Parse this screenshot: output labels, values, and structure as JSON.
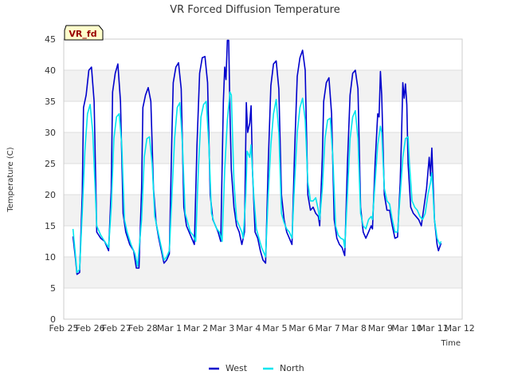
{
  "chart_data": {
    "type": "line",
    "title": "VR Forced Diffusion Temperature",
    "xlabel": "Time",
    "ylabel": "Temperature (C)",
    "badge": "VR_fd",
    "xlim": [
      0,
      16
    ],
    "ylim": [
      0,
      45
    ],
    "grid": true,
    "legend_position": "bottom-center",
    "x_ticks": [
      {
        "value": 0,
        "label": "Feb 25"
      },
      {
        "value": 1,
        "label": "Feb 26"
      },
      {
        "value": 2,
        "label": "Feb 27"
      },
      {
        "value": 3,
        "label": "Feb 28"
      },
      {
        "value": 4,
        "label": "Mar 1"
      },
      {
        "value": 5,
        "label": "Mar 2"
      },
      {
        "value": 6,
        "label": "Mar 3"
      },
      {
        "value": 7,
        "label": "Mar 4"
      },
      {
        "value": 8,
        "label": "Mar 5"
      },
      {
        "value": 9,
        "label": "Mar 6"
      },
      {
        "value": 10,
        "label": "Mar 7"
      },
      {
        "value": 11,
        "label": "Mar 8"
      },
      {
        "value": 12,
        "label": "Mar 9"
      },
      {
        "value": 13,
        "label": "Mar 10"
      },
      {
        "value": 14,
        "label": "Mar 11"
      },
      {
        "value": 15,
        "label": "Mar 12"
      }
    ],
    "y_ticks": [
      0,
      5,
      10,
      15,
      20,
      25,
      30,
      35,
      40,
      45
    ],
    "series": [
      {
        "name": "West",
        "color": "#0000cc",
        "points": [
          [
            0.35,
            13.3
          ],
          [
            0.45,
            9.5
          ],
          [
            0.5,
            7.2
          ],
          [
            0.6,
            7.5
          ],
          [
            0.7,
            20
          ],
          [
            0.75,
            34
          ],
          [
            0.85,
            36
          ],
          [
            0.95,
            40
          ],
          [
            1.05,
            40.5
          ],
          [
            1.15,
            35
          ],
          [
            1.25,
            14
          ],
          [
            1.4,
            13
          ],
          [
            1.55,
            12.5
          ],
          [
            1.7,
            11
          ],
          [
            1.8,
            21
          ],
          [
            1.85,
            36.5
          ],
          [
            1.95,
            39.5
          ],
          [
            2.05,
            41
          ],
          [
            2.15,
            35
          ],
          [
            2.25,
            17
          ],
          [
            2.35,
            14
          ],
          [
            2.5,
            12
          ],
          [
            2.65,
            11
          ],
          [
            2.75,
            8.2
          ],
          [
            2.85,
            8.2
          ],
          [
            2.95,
            21
          ],
          [
            3.0,
            34
          ],
          [
            3.1,
            36
          ],
          [
            3.2,
            37.2
          ],
          [
            3.3,
            35
          ],
          [
            3.4,
            21
          ],
          [
            3.5,
            15.5
          ],
          [
            3.6,
            13
          ],
          [
            3.7,
            11
          ],
          [
            3.8,
            9
          ],
          [
            3.9,
            9.5
          ],
          [
            4.0,
            10.5
          ],
          [
            4.1,
            30
          ],
          [
            4.15,
            38
          ],
          [
            4.25,
            40.5
          ],
          [
            4.35,
            41.2
          ],
          [
            4.45,
            37
          ],
          [
            4.55,
            18
          ],
          [
            4.65,
            15
          ],
          [
            4.75,
            14
          ],
          [
            4.85,
            13
          ],
          [
            4.95,
            12
          ],
          [
            5.05,
            28
          ],
          [
            5.15,
            39.5
          ],
          [
            5.25,
            42
          ],
          [
            5.35,
            42.2
          ],
          [
            5.45,
            38
          ],
          [
            5.55,
            20
          ],
          [
            5.65,
            16
          ],
          [
            5.75,
            15
          ],
          [
            5.85,
            14
          ],
          [
            5.95,
            12.5
          ],
          [
            6.05,
            35
          ],
          [
            6.1,
            40.5
          ],
          [
            6.15,
            38.5
          ],
          [
            6.2,
            44.8
          ],
          [
            6.25,
            44.8
          ],
          [
            6.3,
            33
          ],
          [
            6.35,
            24
          ],
          [
            6.45,
            18
          ],
          [
            6.55,
            15
          ],
          [
            6.65,
            14
          ],
          [
            6.75,
            12
          ],
          [
            6.85,
            14
          ],
          [
            6.92,
            34.8
          ],
          [
            6.97,
            30
          ],
          [
            7.05,
            31.5
          ],
          [
            7.1,
            34.3
          ],
          [
            7.15,
            24
          ],
          [
            7.25,
            14
          ],
          [
            7.35,
            13
          ],
          [
            7.45,
            11
          ],
          [
            7.55,
            9.5
          ],
          [
            7.65,
            9
          ],
          [
            7.75,
            25
          ],
          [
            7.85,
            37.5
          ],
          [
            7.95,
            41
          ],
          [
            8.05,
            41.5
          ],
          [
            8.15,
            37
          ],
          [
            8.25,
            20
          ],
          [
            8.35,
            16
          ],
          [
            8.45,
            14
          ],
          [
            8.55,
            13
          ],
          [
            8.65,
            12
          ],
          [
            8.75,
            27
          ],
          [
            8.85,
            39
          ],
          [
            8.95,
            42
          ],
          [
            9.05,
            43.2
          ],
          [
            9.15,
            40
          ],
          [
            9.25,
            20
          ],
          [
            9.35,
            17.5
          ],
          [
            9.45,
            18
          ],
          [
            9.55,
            17
          ],
          [
            9.65,
            16.5
          ],
          [
            9.7,
            15
          ],
          [
            9.8,
            26
          ],
          [
            9.85,
            35
          ],
          [
            9.95,
            38
          ],
          [
            10.05,
            38.8
          ],
          [
            10.15,
            33
          ],
          [
            10.25,
            16
          ],
          [
            10.35,
            13
          ],
          [
            10.45,
            12
          ],
          [
            10.55,
            11.5
          ],
          [
            10.65,
            10.2
          ],
          [
            10.75,
            25
          ],
          [
            10.85,
            36
          ],
          [
            10.95,
            39.5
          ],
          [
            11.05,
            40
          ],
          [
            11.15,
            37
          ],
          [
            11.25,
            18
          ],
          [
            11.35,
            14
          ],
          [
            11.45,
            13
          ],
          [
            11.55,
            14
          ],
          [
            11.65,
            15
          ],
          [
            11.7,
            14.5
          ],
          [
            11.8,
            25
          ],
          [
            11.9,
            33
          ],
          [
            11.95,
            32.5
          ],
          [
            12.0,
            39.8
          ],
          [
            12.05,
            36
          ],
          [
            12.15,
            20
          ],
          [
            12.25,
            17.5
          ],
          [
            12.35,
            17.5
          ],
          [
            12.45,
            15
          ],
          [
            12.55,
            13
          ],
          [
            12.65,
            13.2
          ],
          [
            12.75,
            22
          ],
          [
            12.8,
            29
          ],
          [
            12.85,
            38
          ],
          [
            12.9,
            35.5
          ],
          [
            12.95,
            37.8
          ],
          [
            13.0,
            34.5
          ],
          [
            13.05,
            25
          ],
          [
            13.15,
            18
          ],
          [
            13.25,
            17
          ],
          [
            13.35,
            16.5
          ],
          [
            13.45,
            16
          ],
          [
            13.55,
            15
          ],
          [
            13.65,
            18
          ],
          [
            13.75,
            21
          ],
          [
            13.85,
            26
          ],
          [
            13.9,
            23
          ],
          [
            13.95,
            27.5
          ],
          [
            14.05,
            16
          ],
          [
            14.15,
            12
          ],
          [
            14.2,
            11
          ],
          [
            14.3,
            12.2
          ]
        ]
      },
      {
        "name": "North",
        "color": "#00e5ee",
        "points": [
          [
            0.35,
            14.5
          ],
          [
            0.45,
            10
          ],
          [
            0.5,
            7.5
          ],
          [
            0.6,
            8
          ],
          [
            0.7,
            17
          ],
          [
            0.8,
            27
          ],
          [
            0.9,
            33
          ],
          [
            1.0,
            34.5
          ],
          [
            1.1,
            30
          ],
          [
            1.25,
            15
          ],
          [
            1.4,
            13.5
          ],
          [
            1.55,
            12.5
          ],
          [
            1.7,
            11.5
          ],
          [
            1.8,
            18
          ],
          [
            1.9,
            29
          ],
          [
            2.0,
            32.5
          ],
          [
            2.1,
            33
          ],
          [
            2.2,
            28
          ],
          [
            2.3,
            16
          ],
          [
            2.4,
            14
          ],
          [
            2.55,
            12
          ],
          [
            2.7,
            10.5
          ],
          [
            2.8,
            8.5
          ],
          [
            2.95,
            16
          ],
          [
            3.05,
            26
          ],
          [
            3.15,
            29
          ],
          [
            3.25,
            29.3
          ],
          [
            3.35,
            25
          ],
          [
            3.45,
            16.5
          ],
          [
            3.6,
            13.5
          ],
          [
            3.7,
            11.5
          ],
          [
            3.8,
            9.5
          ],
          [
            3.9,
            10
          ],
          [
            4.0,
            11
          ],
          [
            4.1,
            20
          ],
          [
            4.2,
            29
          ],
          [
            4.3,
            34
          ],
          [
            4.4,
            34.8
          ],
          [
            4.5,
            28
          ],
          [
            4.6,
            17
          ],
          [
            4.7,
            15.5
          ],
          [
            4.8,
            14
          ],
          [
            4.9,
            13.5
          ],
          [
            5.0,
            12.5
          ],
          [
            5.1,
            24
          ],
          [
            5.2,
            32.5
          ],
          [
            5.3,
            34.5
          ],
          [
            5.4,
            35
          ],
          [
            5.5,
            28
          ],
          [
            5.6,
            17
          ],
          [
            5.7,
            15.5
          ],
          [
            5.8,
            14.5
          ],
          [
            5.9,
            14
          ],
          [
            6.0,
            12.5
          ],
          [
            6.1,
            24
          ],
          [
            6.2,
            32
          ],
          [
            6.3,
            36.5
          ],
          [
            6.35,
            36
          ],
          [
            6.45,
            22
          ],
          [
            6.55,
            16
          ],
          [
            6.65,
            15
          ],
          [
            6.75,
            14
          ],
          [
            6.8,
            13
          ],
          [
            6.9,
            20
          ],
          [
            6.95,
            27
          ],
          [
            7.05,
            26
          ],
          [
            7.1,
            28
          ],
          [
            7.2,
            20
          ],
          [
            7.3,
            14.5
          ],
          [
            7.4,
            13
          ],
          [
            7.5,
            11.5
          ],
          [
            7.6,
            10.5
          ],
          [
            7.65,
            10
          ],
          [
            7.75,
            20
          ],
          [
            7.85,
            28
          ],
          [
            7.95,
            33
          ],
          [
            8.05,
            35.3
          ],
          [
            8.15,
            30
          ],
          [
            8.25,
            17
          ],
          [
            8.35,
            15.5
          ],
          [
            8.45,
            14.5
          ],
          [
            8.55,
            14
          ],
          [
            8.65,
            13
          ],
          [
            8.75,
            22
          ],
          [
            8.85,
            30
          ],
          [
            8.95,
            34
          ],
          [
            9.05,
            35.5
          ],
          [
            9.15,
            32
          ],
          [
            9.25,
            22
          ],
          [
            9.35,
            19
          ],
          [
            9.45,
            19
          ],
          [
            9.55,
            19.5
          ],
          [
            9.65,
            17.5
          ],
          [
            9.7,
            16
          ],
          [
            9.8,
            21
          ],
          [
            9.9,
            29
          ],
          [
            10.0,
            32
          ],
          [
            10.1,
            32.3
          ],
          [
            10.2,
            26
          ],
          [
            10.3,
            15
          ],
          [
            10.4,
            13.5
          ],
          [
            10.5,
            13
          ],
          [
            10.6,
            12.8
          ],
          [
            10.65,
            11.5
          ],
          [
            10.75,
            20
          ],
          [
            10.85,
            29
          ],
          [
            10.95,
            32.5
          ],
          [
            11.05,
            33.5
          ],
          [
            11.15,
            29
          ],
          [
            11.25,
            17
          ],
          [
            11.35,
            15
          ],
          [
            11.45,
            14.5
          ],
          [
            11.55,
            16
          ],
          [
            11.65,
            16.5
          ],
          [
            11.7,
            16
          ],
          [
            11.8,
            22
          ],
          [
            11.9,
            28
          ],
          [
            12.0,
            31
          ],
          [
            12.05,
            30
          ],
          [
            12.15,
            21
          ],
          [
            12.25,
            19
          ],
          [
            12.35,
            18.5
          ],
          [
            12.45,
            16
          ],
          [
            12.55,
            14
          ],
          [
            12.65,
            14
          ],
          [
            12.75,
            20
          ],
          [
            12.85,
            26
          ],
          [
            12.95,
            29
          ],
          [
            13.05,
            29.3
          ],
          [
            13.1,
            25
          ],
          [
            13.2,
            19
          ],
          [
            13.3,
            18
          ],
          [
            13.4,
            17.5
          ],
          [
            13.5,
            16.5
          ],
          [
            13.6,
            16
          ],
          [
            13.7,
            17
          ],
          [
            13.8,
            20
          ],
          [
            13.9,
            22
          ],
          [
            13.95,
            23.5
          ],
          [
            14.05,
            16
          ],
          [
            14.15,
            13
          ],
          [
            14.25,
            12
          ],
          [
            14.3,
            12.5
          ]
        ]
      }
    ]
  }
}
